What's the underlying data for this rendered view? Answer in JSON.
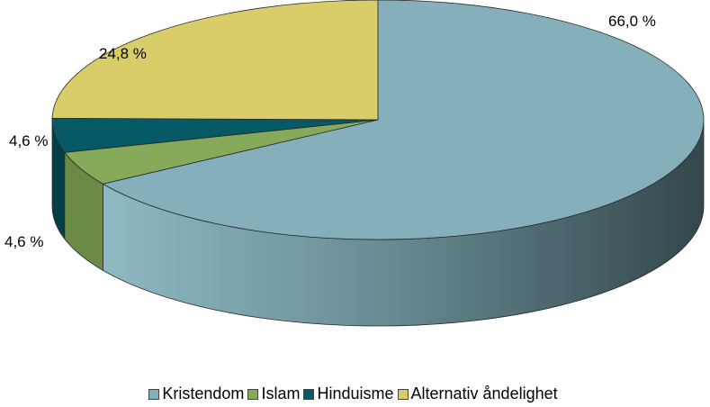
{
  "chart_data": {
    "type": "pie",
    "categories": [
      "Kristendom",
      "Islam",
      "Hinduisme",
      "Alternativ åndelighet"
    ],
    "values": [
      66.0,
      4.6,
      4.6,
      24.8
    ],
    "data_labels": [
      "66,0 %",
      "4,6 %",
      "4,6 %",
      "24,8 %"
    ],
    "colors": [
      "#85b0bb",
      "#86a95a",
      "#065a66",
      "#d8cd69"
    ],
    "legend_position": "bottom",
    "style": "3d"
  }
}
